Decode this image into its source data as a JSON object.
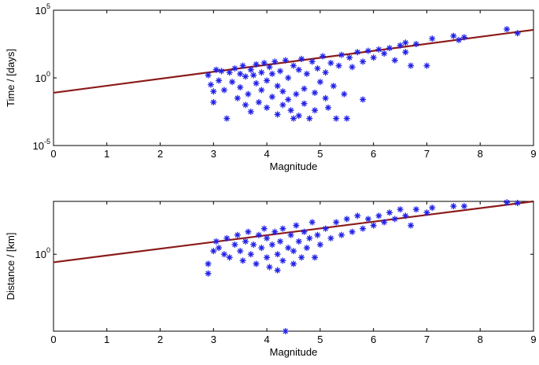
{
  "chart_data": [
    {
      "type": "scatter",
      "xlabel": "Magnitude",
      "ylabel": "Time / [days]",
      "xlim": [
        0,
        9
      ],
      "ylim_log10": [
        -5,
        5
      ],
      "x_ticks": [
        0,
        1,
        2,
        3,
        4,
        5,
        6,
        7,
        8,
        9
      ],
      "y_ticks": [
        {
          "base": "10",
          "exp": "5",
          "log10": 5
        },
        {
          "base": "10",
          "exp": "0",
          "log10": 0
        },
        {
          "base": "10",
          "exp": "-5",
          "log10": -5
        }
      ],
      "marker": "*",
      "marker_color": "#2020e8",
      "line_color": "#8b1a1a",
      "fit_line_log10": {
        "x0": 0,
        "y0": -1.1,
        "x1": 9,
        "y1": 3.55
      },
      "points_log10": [
        [
          2.9,
          0.2
        ],
        [
          2.95,
          -0.5
        ],
        [
          3.0,
          -1.0
        ],
        [
          3.0,
          -1.8
        ],
        [
          3.05,
          0.6
        ],
        [
          3.1,
          -0.2
        ],
        [
          3.15,
          0.5
        ],
        [
          3.2,
          -0.9
        ],
        [
          3.25,
          -3.0
        ],
        [
          3.3,
          0.4
        ],
        [
          3.35,
          -0.3
        ],
        [
          3.4,
          0.7
        ],
        [
          3.45,
          -1.5
        ],
        [
          3.5,
          0.3
        ],
        [
          3.5,
          -0.7
        ],
        [
          3.55,
          0.9
        ],
        [
          3.6,
          -2.0
        ],
        [
          3.6,
          0.1
        ],
        [
          3.65,
          -1.2
        ],
        [
          3.7,
          0.6
        ],
        [
          3.7,
          -2.5
        ],
        [
          3.75,
          0.2
        ],
        [
          3.8,
          -0.4
        ],
        [
          3.8,
          1.0
        ],
        [
          3.85,
          -1.8
        ],
        [
          3.9,
          0.4
        ],
        [
          3.9,
          -0.9
        ],
        [
          3.95,
          1.1
        ],
        [
          4.0,
          -0.2
        ],
        [
          4.0,
          -2.2
        ],
        [
          4.05,
          0.8
        ],
        [
          4.1,
          -1.4
        ],
        [
          4.1,
          0.3
        ],
        [
          4.15,
          1.2
        ],
        [
          4.2,
          -0.6
        ],
        [
          4.2,
          -2.7
        ],
        [
          4.25,
          0.5
        ],
        [
          4.3,
          -1.0
        ],
        [
          4.3,
          -2.0
        ],
        [
          4.35,
          1.3
        ],
        [
          4.4,
          -1.6
        ],
        [
          4.4,
          0.0
        ],
        [
          4.45,
          -2.4
        ],
        [
          4.5,
          0.9
        ],
        [
          4.5,
          -3.0
        ],
        [
          4.55,
          -1.2
        ],
        [
          4.6,
          0.6
        ],
        [
          4.6,
          -2.8
        ],
        [
          4.65,
          1.4
        ],
        [
          4.7,
          -0.8
        ],
        [
          4.7,
          -1.9
        ],
        [
          4.75,
          0.3
        ],
        [
          4.8,
          -3.0
        ],
        [
          4.85,
          1.2
        ],
        [
          4.9,
          -1.1
        ],
        [
          4.9,
          -2.4
        ],
        [
          4.95,
          0.7
        ],
        [
          5.0,
          -0.3
        ],
        [
          5.05,
          1.6
        ],
        [
          5.1,
          -1.5
        ],
        [
          5.1,
          0.4
        ],
        [
          5.15,
          -2.2
        ],
        [
          5.2,
          1.1
        ],
        [
          5.25,
          -0.6
        ],
        [
          5.3,
          -3.0
        ],
        [
          5.35,
          0.9
        ],
        [
          5.4,
          1.7
        ],
        [
          5.45,
          -1.2
        ],
        [
          5.5,
          -3.0
        ],
        [
          5.55,
          1.5
        ],
        [
          5.6,
          0.8
        ],
        [
          5.7,
          1.9
        ],
        [
          5.8,
          -1.6
        ],
        [
          5.8,
          1.2
        ],
        [
          5.9,
          2.0
        ],
        [
          6.0,
          1.5
        ],
        [
          6.1,
          2.1
        ],
        [
          6.2,
          1.8
        ],
        [
          6.3,
          2.2
        ],
        [
          6.4,
          1.3
        ],
        [
          6.5,
          2.4
        ],
        [
          6.6,
          1.9
        ],
        [
          6.6,
          2.6
        ],
        [
          6.7,
          0.9
        ],
        [
          6.8,
          2.5
        ],
        [
          7.0,
          0.9
        ],
        [
          7.1,
          2.9
        ],
        [
          7.5,
          3.1
        ],
        [
          7.6,
          2.8
        ],
        [
          7.7,
          3.0
        ],
        [
          8.5,
          3.6
        ],
        [
          8.7,
          3.3
        ]
      ]
    },
    {
      "type": "scatter",
      "xlabel": "Magnitude",
      "ylabel": "Distance / [km]",
      "xlim": [
        0,
        9
      ],
      "ylim_log10": [
        -2.4,
        1.65
      ],
      "x_ticks": [
        0,
        1,
        2,
        3,
        4,
        5,
        6,
        7,
        8,
        9
      ],
      "y_ticks": [
        {
          "base": "10",
          "exp": "0",
          "log10": 0
        }
      ],
      "marker": "*",
      "marker_color": "#2020e8",
      "line_color": "#8b1a1a",
      "fit_line_log10": {
        "x0": 0,
        "y0": -0.25,
        "x1": 9,
        "y1": 1.65
      },
      "points_log10": [
        [
          2.9,
          -0.3
        ],
        [
          2.9,
          -0.6
        ],
        [
          3.0,
          0.1
        ],
        [
          3.05,
          0.4
        ],
        [
          3.1,
          0.2
        ],
        [
          3.2,
          0.0
        ],
        [
          3.25,
          0.5
        ],
        [
          3.3,
          -0.1
        ],
        [
          3.4,
          0.3
        ],
        [
          3.45,
          0.6
        ],
        [
          3.5,
          0.1
        ],
        [
          3.55,
          -0.2
        ],
        [
          3.6,
          0.4
        ],
        [
          3.65,
          0.7
        ],
        [
          3.7,
          0.0
        ],
        [
          3.75,
          0.3
        ],
        [
          3.8,
          -0.3
        ],
        [
          3.85,
          0.6
        ],
        [
          3.9,
          0.2
        ],
        [
          3.95,
          0.8
        ],
        [
          4.0,
          -0.1
        ],
        [
          4.0,
          0.5
        ],
        [
          4.05,
          -0.4
        ],
        [
          4.1,
          0.3
        ],
        [
          4.15,
          0.7
        ],
        [
          4.2,
          0.0
        ],
        [
          4.2,
          -0.5
        ],
        [
          4.25,
          0.4
        ],
        [
          4.3,
          0.8
        ],
        [
          4.3,
          -0.2
        ],
        [
          4.35,
          -2.4
        ],
        [
          4.4,
          0.2
        ],
        [
          4.45,
          0.6
        ],
        [
          4.5,
          -0.3
        ],
        [
          4.5,
          0.1
        ],
        [
          4.55,
          0.9
        ],
        [
          4.6,
          0.4
        ],
        [
          4.65,
          -0.1
        ],
        [
          4.7,
          0.7
        ],
        [
          4.75,
          0.2
        ],
        [
          4.8,
          0.5
        ],
        [
          4.85,
          1.0
        ],
        [
          4.9,
          -0.1
        ],
        [
          4.95,
          0.6
        ],
        [
          5.0,
          0.3
        ],
        [
          5.1,
          0.8
        ],
        [
          5.2,
          0.5
        ],
        [
          5.3,
          1.0
        ],
        [
          5.4,
          0.6
        ],
        [
          5.5,
          1.1
        ],
        [
          5.6,
          0.7
        ],
        [
          5.7,
          1.2
        ],
        [
          5.8,
          0.8
        ],
        [
          5.9,
          1.1
        ],
        [
          6.0,
          0.9
        ],
        [
          6.1,
          1.2
        ],
        [
          6.2,
          1.0
        ],
        [
          6.3,
          1.3
        ],
        [
          6.4,
          1.1
        ],
        [
          6.5,
          1.4
        ],
        [
          6.6,
          1.2
        ],
        [
          6.7,
          0.9
        ],
        [
          6.8,
          1.4
        ],
        [
          7.0,
          1.3
        ],
        [
          7.1,
          1.45
        ],
        [
          7.5,
          1.5
        ],
        [
          7.7,
          1.5
        ],
        [
          8.5,
          1.62
        ],
        [
          8.7,
          1.6
        ]
      ]
    }
  ]
}
